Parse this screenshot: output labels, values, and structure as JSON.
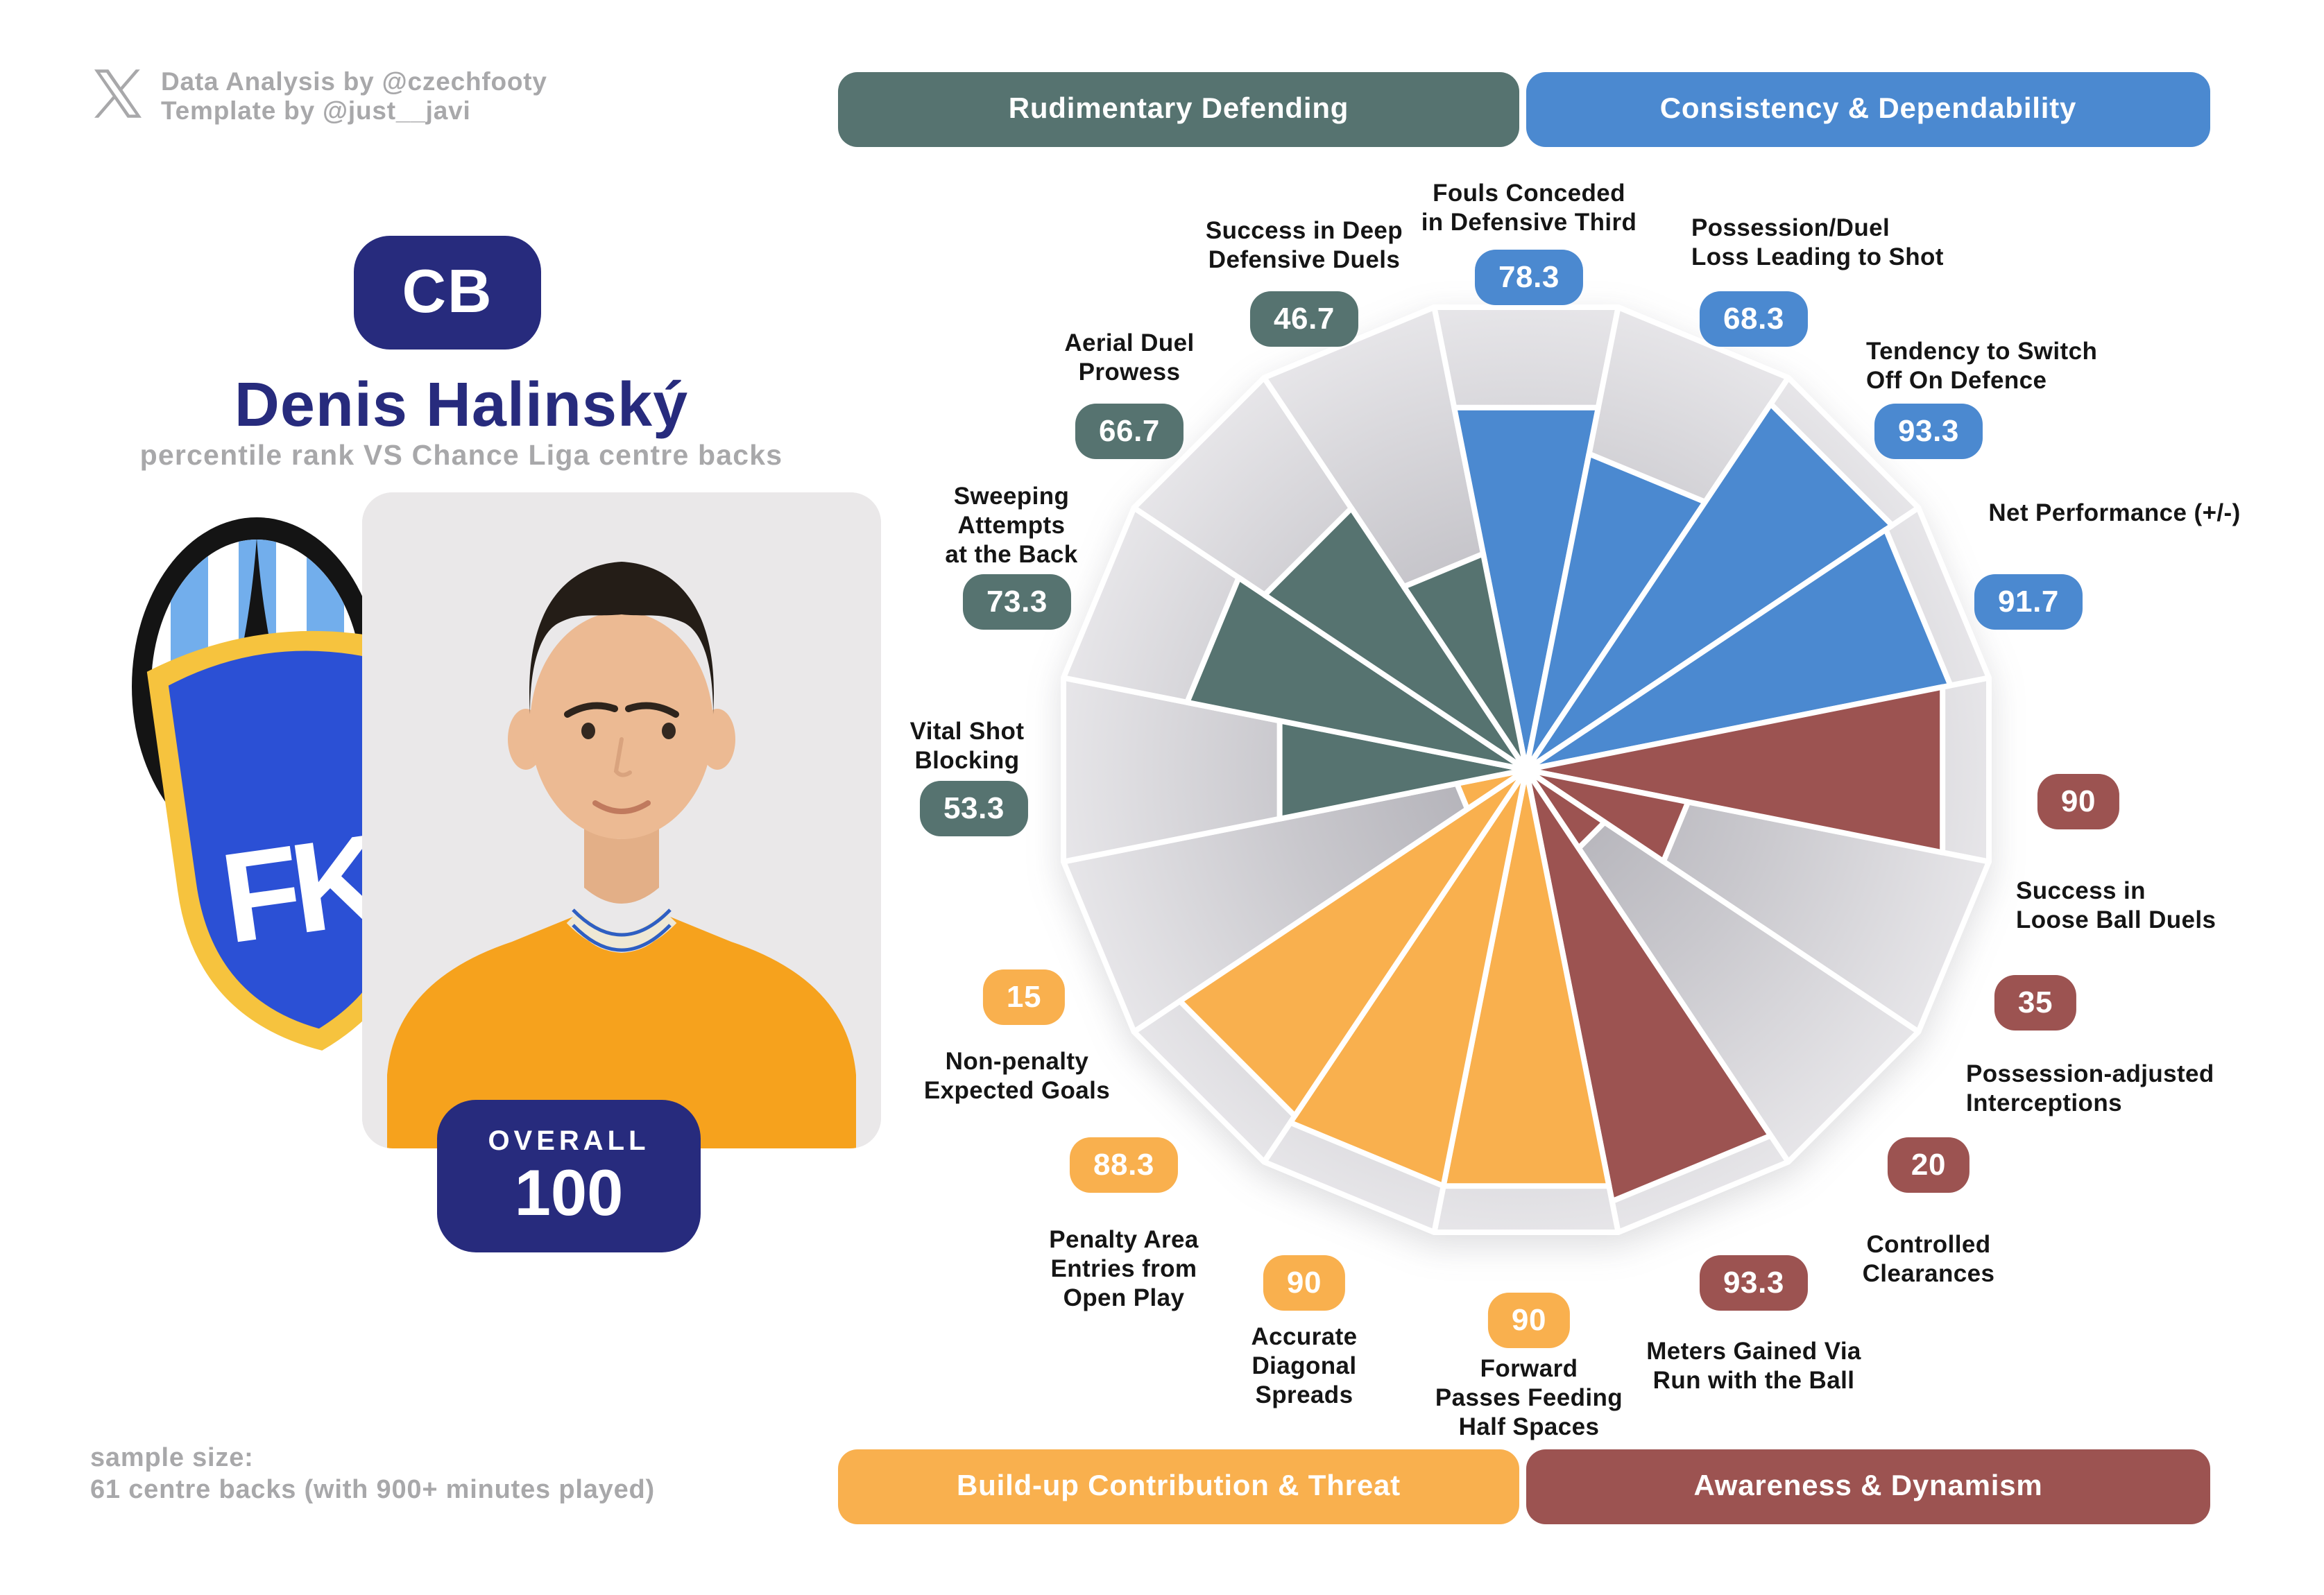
{
  "credits": {
    "icon": "x-logo-icon",
    "line1": "Data Analysis by @czechfooty",
    "line2": "Template by @just__javi"
  },
  "player": {
    "position": "CB",
    "name": "Denis Halinský",
    "subtitle": "percentile rank VS Chance Liga centre backs",
    "overall_label": "OVERALL",
    "overall_value": "100",
    "club_initials": "FK"
  },
  "sample_size": {
    "line1": "sample size:",
    "line2": "61 centre backs (with 900+ minutes played)"
  },
  "categories": [
    {
      "label": "Rudimentary Defending",
      "color": "#567370"
    },
    {
      "label": "Consistency & Dependability",
      "color": "#4b89d0"
    },
    {
      "label": "Build-up Contribution & Threat",
      "color": "#f9b04e"
    },
    {
      "label": "Awareness & Dynamism",
      "color": "#9c5351"
    }
  ],
  "chart_data": {
    "type": "bar",
    "variant": "polar pizza percentile chart, 16 slices clockwise from top",
    "ylim": [
      0,
      100
    ],
    "grid": false,
    "slice_background_color": "#d9d8db",
    "params": [
      {
        "label": [
          "Fouls Conceded",
          "in Defensive Third"
        ],
        "value": 78.3,
        "category": 1
      },
      {
        "label": [
          "Possession/Duel",
          "Loss Leading to Shot"
        ],
        "value": 68.3,
        "category": 1
      },
      {
        "label": [
          "Tendency to Switch",
          "Off On Defence"
        ],
        "value": 93.3,
        "category": 1
      },
      {
        "label": [
          "Net Performance (+/-)"
        ],
        "value": 91.7,
        "category": 1
      },
      {
        "label": [
          "Success in",
          "Loose Ball Duels"
        ],
        "value": 90,
        "category": 3
      },
      {
        "label": [
          "Possession-adjusted",
          "Interceptions"
        ],
        "value": 35,
        "category": 3
      },
      {
        "label": [
          "Controlled",
          "Clearances"
        ],
        "value": 20,
        "category": 3
      },
      {
        "label": [
          "Meters Gained Via",
          "Run with the Ball"
        ],
        "value": 93.3,
        "category": 3
      },
      {
        "label": [
          "Forward",
          "Passes Feeding",
          "Half Spaces"
        ],
        "value": 90,
        "category": 2
      },
      {
        "label": [
          "Accurate",
          "Diagonal",
          "Spreads"
        ],
        "value": 90,
        "category": 2
      },
      {
        "label": [
          "Penalty Area",
          "Entries from",
          "Open Play"
        ],
        "value": 88.3,
        "category": 2
      },
      {
        "label": [
          "Non-penalty",
          "Expected Goals"
        ],
        "value": 15,
        "category": 2
      },
      {
        "label": [
          "Vital Shot",
          "Blocking"
        ],
        "value": 53.3,
        "category": 0
      },
      {
        "label": [
          "Sweeping",
          "Attempts",
          "at the Back"
        ],
        "value": 73.3,
        "category": 0
      },
      {
        "label": [
          "Aerial Duel",
          "Prowess"
        ],
        "value": 66.7,
        "category": 0
      },
      {
        "label": [
          "Success in Deep",
          "Defensive Duels"
        ],
        "value": 46.7,
        "category": 0
      }
    ]
  }
}
